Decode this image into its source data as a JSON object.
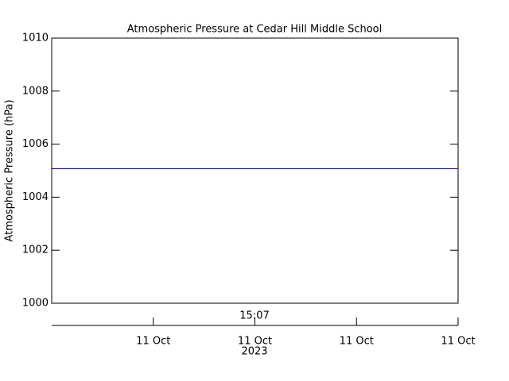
{
  "chart_data": {
    "type": "line",
    "title": "Atmospheric Pressure at Cedar Hill Middle School",
    "y_label": "Atmospheric Pressure (hPa)",
    "x": [
      0,
      4
    ],
    "series": [
      {
        "name": "Pressure",
        "color": "#0000aa",
        "values": [
          1005.08,
          1005.08
        ]
      }
    ],
    "ylim": [
      1000,
      1010
    ],
    "yticks": [
      1000,
      1002,
      1004,
      1006,
      1008,
      1010
    ],
    "xlim": [
      0,
      4
    ],
    "xticks": [
      {
        "value": 1,
        "label": "11 Oct"
      },
      {
        "value": 2,
        "label": "11 Oct"
      },
      {
        "value": 3,
        "label": "11 Oct"
      },
      {
        "value": 4,
        "label": "11 Oct"
      }
    ],
    "time_label": "15:07",
    "year_label": "2023",
    "grid": false
  }
}
